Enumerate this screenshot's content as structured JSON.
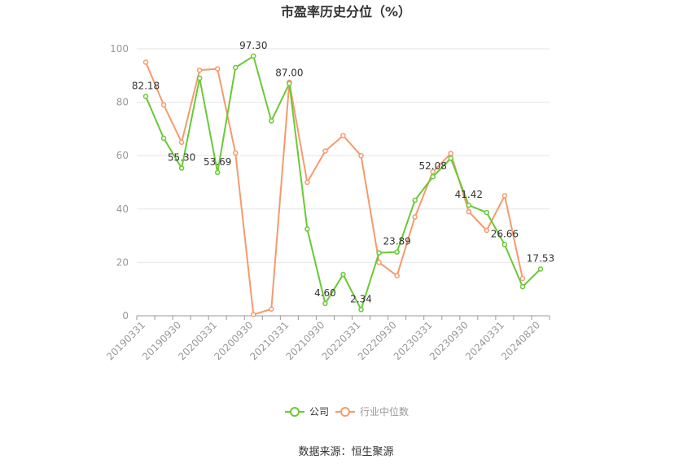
{
  "chart_data": {
    "type": "line",
    "title": "市盈率历史分位（%）",
    "source_text": "数据来源：恒生聚源",
    "ylim": [
      0,
      100
    ],
    "yticks": [
      0,
      20,
      40,
      60,
      80,
      100
    ],
    "x": [
      "20190331",
      "20190630",
      "20190930",
      "20191231",
      "20200331",
      "20200630",
      "20200930",
      "20201231",
      "20210331",
      "20210630",
      "20210930",
      "20211231",
      "20220331",
      "20220630",
      "20220930",
      "20221231",
      "20230331",
      "20230630",
      "20230930",
      "20231231",
      "20240331",
      "20240630",
      "20240820"
    ],
    "xtick_labels": [
      "20190331",
      "20190930",
      "20200331",
      "20200930",
      "20210331",
      "20210930",
      "20220331",
      "20220930",
      "20230331",
      "20230930",
      "20240331",
      "20240820"
    ],
    "legend_position": "bottom-center",
    "series": [
      {
        "name": "公司",
        "color": "#6ac935",
        "values": [
          82.18,
          66.5,
          55.3,
          89.0,
          53.69,
          93.0,
          97.3,
          73.0,
          87.0,
          32.5,
          4.6,
          15.5,
          2.34,
          23.6,
          23.89,
          43.3,
          52.08,
          59.0,
          41.42,
          38.7,
          26.66,
          10.9,
          17.53
        ],
        "data_labels": [
          "82.18",
          null,
          "55.30",
          null,
          "53.69",
          null,
          "97.30",
          null,
          "87.00",
          null,
          "4.60",
          null,
          "2.34",
          null,
          "23.89",
          null,
          "52.08",
          null,
          "41.42",
          null,
          "26.66",
          null,
          "17.53"
        ]
      },
      {
        "name": "行业中位数",
        "color": "#f59a6e",
        "values": [
          95.0,
          79.0,
          65.0,
          92.0,
          92.5,
          61.0,
          0.5,
          2.5,
          87.5,
          50.0,
          61.7,
          67.5,
          60.0,
          20.0,
          15.0,
          37.0,
          54.0,
          60.8,
          39.0,
          32.0,
          45.0,
          14.0,
          null
        ],
        "data_labels": []
      }
    ]
  }
}
